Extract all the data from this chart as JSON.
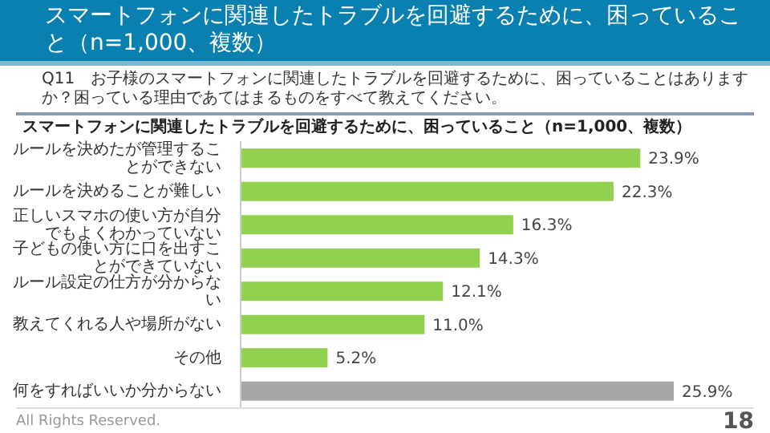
{
  "chart_data": {
    "type": "bar",
    "orientation": "horizontal",
    "title": "スマートフォンに関連したトラブルを回避するために、困っていること（n=1,000、複数）",
    "subtitle": "Q11　お子様のスマートフォンに関連したトラブルを回避するために、困っていることはありますか？困っている理由であてはまるものをすべて教えてください。",
    "annotations": [
      "スマートフォンに関連したトラブルを回避するために、困っていること（n=1,000、複数）",
      "All Rights Reserved.",
      "18"
    ],
    "categories": [
      "ルールを決めたが管理することができない",
      "ルールを決めることが難しい",
      "正しいスマホの使い方が自分でもよくわかっていない",
      "子どもの使い方に口を出すことができていない",
      "ルール設定の仕方が分からない",
      "教えてくれる人や場所がない",
      "その他",
      "何をすればいいか分からない"
    ],
    "values": [
      23.9,
      22.3,
      16.3,
      14.3,
      12.1,
      11.0,
      5.2,
      25.9
    ],
    "colors": [
      "#92d050",
      "#92d050",
      "#92d050",
      "#92d050",
      "#92d050",
      "#92d050",
      "#92d050",
      "#a6a6a6"
    ],
    "value_labels": [
      "23.9%",
      "22.3%",
      "16.3%",
      "14.3%",
      "12.1%",
      "11.0%",
      "5.2%",
      "25.9%"
    ],
    "grid": false,
    "legend": false
  }
}
